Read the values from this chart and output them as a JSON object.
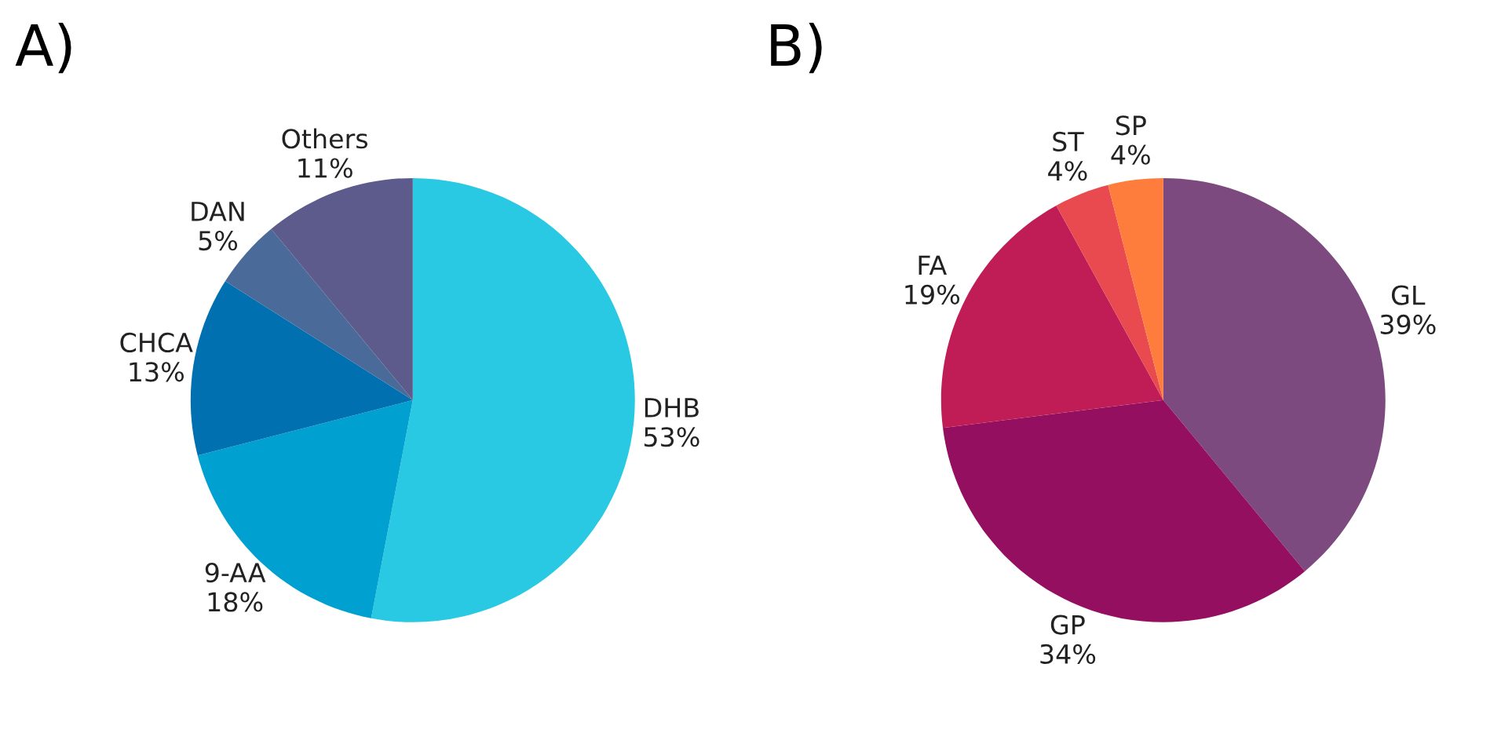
{
  "chart_data": [
    {
      "type": "pie",
      "title": "A)",
      "categories": [
        "DHB",
        "9-AA",
        "CHCA",
        "DAN",
        "Others"
      ],
      "values": [
        53,
        18,
        13,
        5,
        11
      ],
      "value_labels": [
        "53%",
        "18%",
        "13%",
        "5%",
        "11%"
      ],
      "colors": [
        "#29c9e3",
        "#00a0d0",
        "#0070b0",
        "#4a6a9a",
        "#5d5a8c"
      ]
    },
    {
      "type": "pie",
      "title": "B)",
      "categories": [
        "GL",
        "GP",
        "FA",
        "ST",
        "SP"
      ],
      "values": [
        39,
        34,
        19,
        4,
        4
      ],
      "value_labels": [
        "39%",
        "34%",
        "19%",
        "4%",
        "4%"
      ],
      "colors": [
        "#7d4a80",
        "#950f60",
        "#c01c55",
        "#e84a50",
        "#ff7d3c"
      ]
    }
  ]
}
